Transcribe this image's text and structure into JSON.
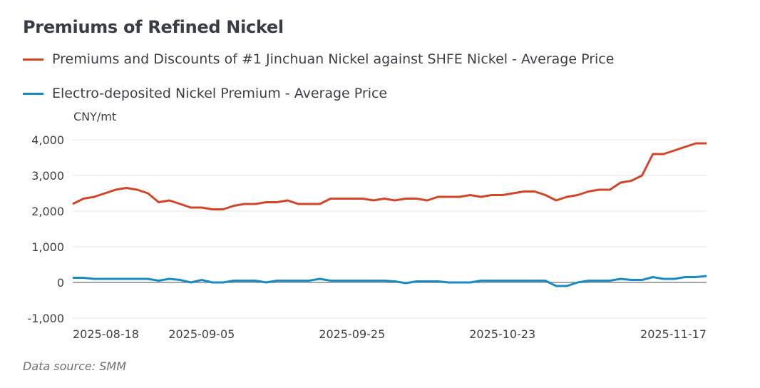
{
  "title": "Premiums of Refined Nickel",
  "legend": [
    {
      "label": "Premiums and Discounts of #1 Jinchuan Nickel against SHFE Nickel - Average Price",
      "color": "#d2452a"
    },
    {
      "label": "Electro-deposited Nickel Premium - Average Price",
      "color": "#1b8ac4"
    }
  ],
  "unit": "CNY/mt",
  "source": "Data source:  SMM",
  "chart_data": {
    "type": "line",
    "title": "Premiums of Refined Nickel",
    "ylabel": "CNY/mt",
    "xlabel": "",
    "ylim": [
      -1000,
      4000
    ],
    "yticks": [
      4000,
      3000,
      2000,
      1000,
      0,
      -1000
    ],
    "ytick_labels": [
      "4,000",
      "3,000",
      "2,000",
      "1,000",
      "0",
      "-1,000"
    ],
    "xtick_labels": [
      "2025-08-18",
      "2025-09-05",
      "2025-09-25",
      "2025-10-23",
      "2025-11-17"
    ],
    "xtick_index": [
      1,
      12,
      26,
      40,
      54
    ],
    "grid": true,
    "legend_position": "top-left",
    "series": [
      {
        "name": "Premiums and Discounts of #1 Jinchuan Nickel against SHFE Nickel - Average Price",
        "color": "#d2452a",
        "values": [
          2200,
          2350,
          2400,
          2500,
          2600,
          2650,
          2600,
          2500,
          2250,
          2300,
          2200,
          2100,
          2100,
          2050,
          2050,
          2150,
          2200,
          2200,
          2250,
          2250,
          2300,
          2200,
          2200,
          2200,
          2350,
          2350,
          2350,
          2350,
          2300,
          2350,
          2300,
          2350,
          2350,
          2300,
          2400,
          2400,
          2400,
          2450,
          2400,
          2450,
          2450,
          2500,
          2550,
          2550,
          2450,
          2300,
          2400,
          2450,
          2550,
          2600,
          2600,
          2800,
          2850,
          3000,
          3600,
          3600,
          3700,
          3800,
          3900,
          3900
        ]
      },
      {
        "name": "Electro-deposited Nickel Premium - Average Price",
        "color": "#1b8ac4",
        "values": [
          130,
          130,
          100,
          100,
          100,
          100,
          100,
          100,
          50,
          100,
          70,
          0,
          70,
          0,
          0,
          50,
          50,
          50,
          0,
          50,
          50,
          50,
          50,
          100,
          50,
          50,
          50,
          50,
          50,
          50,
          30,
          -20,
          30,
          30,
          30,
          0,
          0,
          0,
          50,
          50,
          50,
          50,
          50,
          50,
          50,
          -100,
          -100,
          0,
          50,
          50,
          50,
          100,
          70,
          70,
          150,
          100,
          100,
          150,
          150,
          180
        ]
      }
    ]
  }
}
